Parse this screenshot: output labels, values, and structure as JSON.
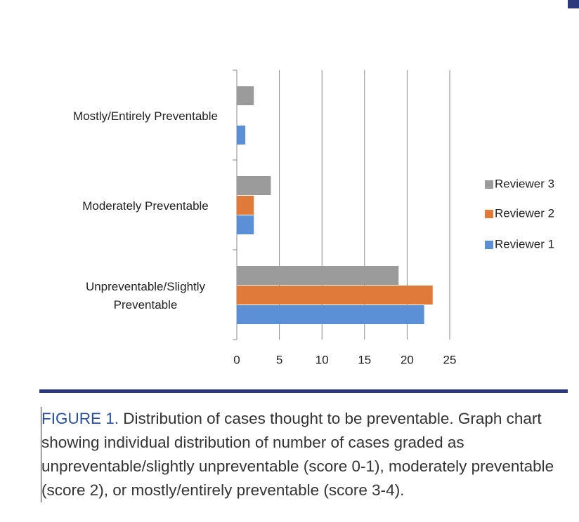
{
  "chart_data": {
    "type": "barh",
    "categories": [
      "Unpreventable/Slightly Preventable",
      "Moderately Preventable",
      "Mostly/Entirely Preventable"
    ],
    "series": [
      {
        "name": "Reviewer 1",
        "color": "#5b8fd6",
        "values": [
          22,
          2,
          1
        ]
      },
      {
        "name": "Reviewer 2",
        "color": "#e07a3a",
        "values": [
          23,
          2,
          0
        ]
      },
      {
        "name": "Reviewer 3",
        "color": "#9b9b9b",
        "values": [
          19,
          4,
          2
        ]
      }
    ],
    "xlim": [
      0,
      25
    ],
    "xticks": [
      0,
      5,
      10,
      15,
      20,
      25
    ],
    "grid": true,
    "legend": "right"
  },
  "caption": {
    "label": "FIGURE 1.",
    "text": "Distribution of cases thought to be preventable. Graph chart showing individual distribution of number of cases graded as unpreventable/slightly unpreventable (score 0-1), moderately preventable (score 2), or mostly/entirely preventable (score 3-4)."
  }
}
